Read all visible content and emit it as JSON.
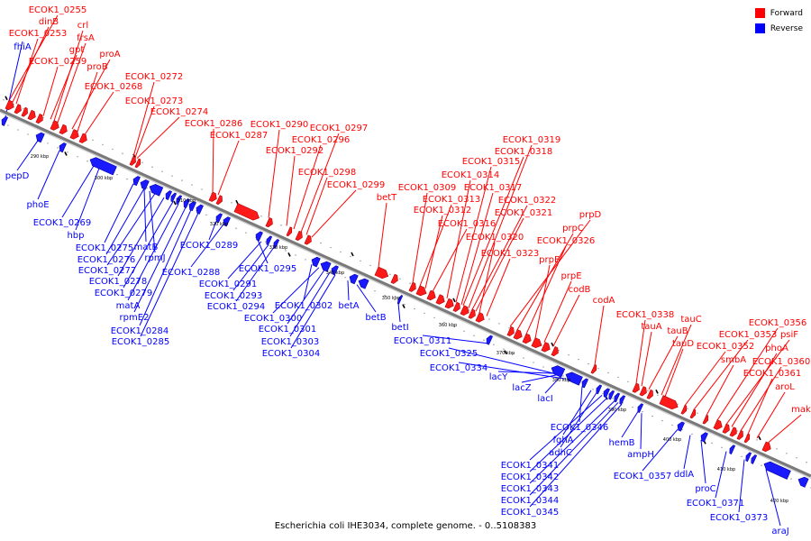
{
  "legend": {
    "forward_label": "Forward",
    "reverse_label": "Reverse",
    "forward_color": "#ff0000",
    "reverse_color": "#0000ff"
  },
  "caption": "Escherichia coli IHE3034, complete genome. - 0..5108383",
  "colors": {
    "backbone": "#777777",
    "leader_forward": "#ff0000",
    "leader_reverse": "#0000ff"
  },
  "ticks": [
    "290 kbp",
    "300 kbp",
    "310 kbp",
    "320 kbp",
    "330 kbp",
    "340 kbp",
    "350 kbp",
    "360 kbp",
    "370 kbp",
    "380 kbp",
    "390 kbp",
    "400 kbp",
    "410 kbp",
    "420 kbp"
  ],
  "forward_genes": [
    "ECOK1_0255",
    "dinB",
    "ECOK1_0253",
    "crl",
    "frsA",
    "gpt",
    "ECOK1_0259",
    "proA",
    "proB",
    "ECOK1_0268",
    "ECOK1_0272",
    "ECOK1_0273",
    "ECOK1_0274",
    "ECOK1_0286",
    "ECOK1_0287",
    "ECOK1_0290",
    "ECOK1_0292",
    "ECOK1_0297",
    "ECOK1_0296",
    "ECOK1_0298",
    "ECOK1_0299",
    "betT",
    "ECOK1_0309",
    "ECOK1_0313",
    "ECOK1_0312",
    "ECOK1_0316",
    "ECOK1_0314",
    "ECOK1_0315",
    "ECOK1_0317",
    "ECOK1_0318",
    "ECOK1_0319",
    "ECOK1_0322",
    "ECOK1_0321",
    "ECOK1_0320",
    "ECOK1_0323",
    "prpD",
    "prpC",
    "ECOK1_0326",
    "prpB",
    "prpE",
    "codB",
    "codA",
    "ECOK1_0338",
    "tauA",
    "tauB",
    "tauC",
    "tauD",
    "ECOK1_0352",
    "ECOK1_0353",
    "smbA",
    "ECOK1_0356",
    "psiF",
    "phoA",
    "ECOK1_0360",
    "ECOK1_0361",
    "aroL",
    "mak"
  ],
  "reverse_genes": [
    "fhiA",
    "pepD",
    "phoE",
    "ECOK1_0269",
    "hbp",
    "ECOK1_0275",
    "matB",
    "ECOK1_0276",
    "rpmJ",
    "ECOK1_0277",
    "ECOK1_0278",
    "ECOK1_0279",
    "matA",
    "rpmE2",
    "ECOK1_0284",
    "ECOK1_0285",
    "ECOK1_0289",
    "ECOK1_0288",
    "ECOK1_0295",
    "ECOK1_0291",
    "ECOK1_0293",
    "ECOK1_0294",
    "ECOK1_0302",
    "ECOK1_0300",
    "ECOK1_0301",
    "ECOK1_0303",
    "ECOK1_0304",
    "betA",
    "betB",
    "betI",
    "ECOK1_0311",
    "ECOK1_0325",
    "ECOK1_0334",
    "lacY",
    "lacZ",
    "lacI",
    "ECOK1_0346",
    "fghA",
    "adhC",
    "ECOK1_0341",
    "ECOK1_0342",
    "ECOK1_0343",
    "ECOK1_0344",
    "ECOK1_0345",
    "hemB",
    "ampH",
    "ECOK1_0357",
    "ddlA",
    "proC",
    "ECOK1_0371",
    "ECOK1_0373",
    "araJ"
  ]
}
